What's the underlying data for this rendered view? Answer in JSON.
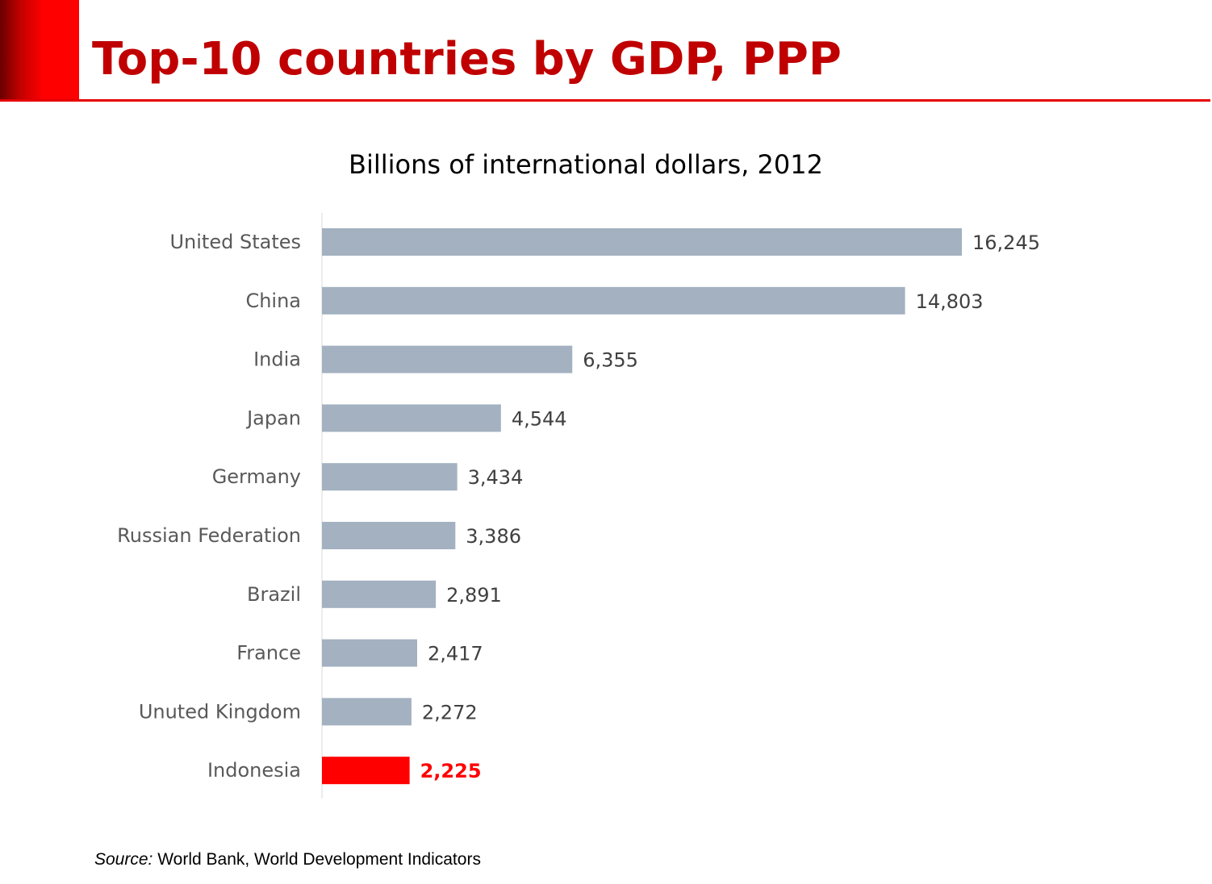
{
  "slide": {
    "title": "Top-10 countries by GDP, PPP",
    "accent_color": "#c00000"
  },
  "chart_data": {
    "type": "bar",
    "orientation": "horizontal",
    "title": "Billions of international dollars, 2012",
    "categories": [
      "United States",
      "China",
      "India",
      "Japan",
      "Germany",
      "Russian Federation",
      "Brazil",
      "France",
      "Unuted Kingdom",
      "Indonesia"
    ],
    "values": [
      16245,
      14803,
      6355,
      4544,
      3434,
      3386,
      2891,
      2417,
      2272,
      2225
    ],
    "value_labels": [
      "16,245",
      "14,803",
      "6,355",
      "4,544",
      "3,434",
      "3,386",
      "2,891",
      "2,417",
      "2,272",
      "2,225"
    ],
    "highlight": "Indonesia",
    "xlim": [
      0,
      16245
    ],
    "grid": false,
    "legend": "none",
    "bar_color": "#a3b1c0",
    "highlight_color": "#ff0000",
    "label_color": "#595959",
    "value_label_color": "#404040"
  },
  "source": {
    "prefix": "Source:",
    "text": " World Bank, World Development Indicators"
  }
}
